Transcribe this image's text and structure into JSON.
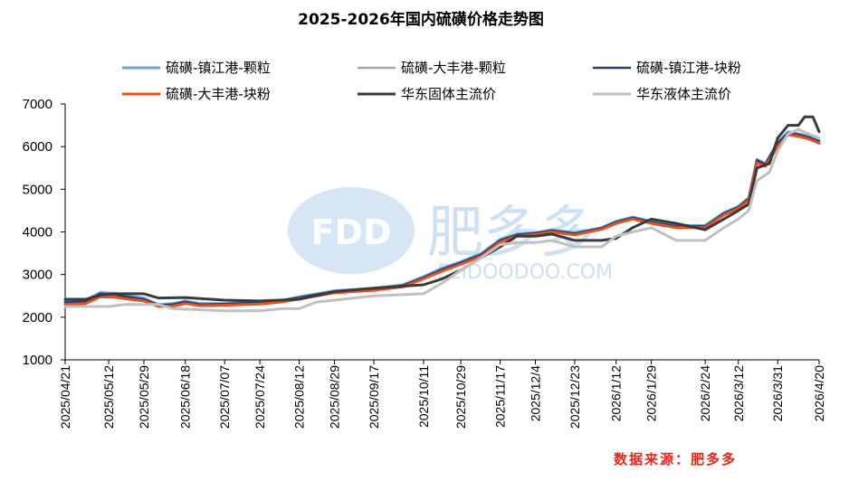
{
  "chart_data": {
    "type": "line",
    "title": "2025-2026年国内硫磺价格走势图",
    "source_label": "数据来源：肥多多",
    "watermark": {
      "logo_text": "FDD",
      "name": "肥多多",
      "site": "FEIDOODOO.COM"
    },
    "ylim": [
      1000,
      7000
    ],
    "yticks": [
      "1000",
      "2000",
      "3000",
      "4000",
      "5000",
      "6000",
      "7000"
    ],
    "x_start": "2025/04/21",
    "x_end": "2026/04/20",
    "xticks": [
      "2025/04/21",
      "2025/05/12",
      "2025/05/29",
      "2025/06/18",
      "2025/07/07",
      "2025/07/24",
      "2025/08/12",
      "2025/08/29",
      "2025/09/17",
      "2025/10/11",
      "2025/10/29",
      "2025/11/17",
      "2025/12/4",
      "2025/12/23",
      "2026/1/12",
      "2026/1/29",
      "2026/2/24",
      "2026/3/12",
      "2026/3/31",
      "2026/4/20"
    ],
    "legend_position": "top",
    "series": [
      {
        "name": "硫磺-镇江港-颗粒",
        "color": "#6fa2d6",
        "width": 3,
        "points": [
          [
            "2025/04/21",
            2380
          ],
          [
            "2025/05/01",
            2400
          ],
          [
            "2025/05/08",
            2580
          ],
          [
            "2025/05/15",
            2560
          ],
          [
            "2025/05/22",
            2500
          ],
          [
            "2025/05/29",
            2450
          ],
          [
            "2025/06/05",
            2300
          ],
          [
            "2025/06/12",
            2320
          ],
          [
            "2025/06/18",
            2380
          ],
          [
            "2025/06/25",
            2320
          ],
          [
            "2025/07/07",
            2320
          ],
          [
            "2025/07/24",
            2360
          ],
          [
            "2025/08/04",
            2400
          ],
          [
            "2025/08/12",
            2480
          ],
          [
            "2025/08/29",
            2620
          ],
          [
            "2025/09/17",
            2680
          ],
          [
            "2025/10/01",
            2760
          ],
          [
            "2025/10/11",
            2950
          ],
          [
            "2025/10/20",
            3150
          ],
          [
            "2025/10/29",
            3300
          ],
          [
            "2025/11/08",
            3500
          ],
          [
            "2025/11/17",
            3820
          ],
          [
            "2025/11/25",
            3950
          ],
          [
            "2025/12/04",
            3980
          ],
          [
            "2025/12/12",
            4050
          ],
          [
            "2025/12/23",
            3980
          ],
          [
            "2026/01/05",
            4100
          ],
          [
            "2026/01/12",
            4250
          ],
          [
            "2026/01/20",
            4350
          ],
          [
            "2026/01/29",
            4250
          ],
          [
            "2026/02/10",
            4150
          ],
          [
            "2026/02/24",
            4150
          ],
          [
            "2026/03/05",
            4450
          ],
          [
            "2026/03/12",
            4600
          ],
          [
            "2026/03/17",
            4800
          ],
          [
            "2026/03/21",
            5700
          ],
          [
            "2026/03/25",
            5600
          ],
          [
            "2026/03/31",
            6100
          ],
          [
            "2026/04/05",
            6350
          ],
          [
            "2026/04/10",
            6300
          ],
          [
            "2026/04/15",
            6250
          ],
          [
            "2026/04/20",
            6150
          ]
        ]
      },
      {
        "name": "硫磺-大丰港-颗粒",
        "color": "#a6a6a6",
        "width": 2.5,
        "points": [
          [
            "2025/04/21",
            2330
          ],
          [
            "2025/05/01",
            2350
          ],
          [
            "2025/05/08",
            2520
          ],
          [
            "2025/05/15",
            2500
          ],
          [
            "2025/05/22",
            2450
          ],
          [
            "2025/05/29",
            2400
          ],
          [
            "2025/06/05",
            2270
          ],
          [
            "2025/06/12",
            2280
          ],
          [
            "2025/06/18",
            2340
          ],
          [
            "2025/06/25",
            2290
          ],
          [
            "2025/07/07",
            2300
          ],
          [
            "2025/07/24",
            2330
          ],
          [
            "2025/08/04",
            2380
          ],
          [
            "2025/08/12",
            2450
          ],
          [
            "2025/08/29",
            2590
          ],
          [
            "2025/09/17",
            2650
          ],
          [
            "2025/10/01",
            2730
          ],
          [
            "2025/10/11",
            2920
          ],
          [
            "2025/10/20",
            3100
          ],
          [
            "2025/10/29",
            3260
          ],
          [
            "2025/11/08",
            3450
          ],
          [
            "2025/11/17",
            3780
          ],
          [
            "2025/11/25",
            3920
          ],
          [
            "2025/12/04",
            3960
          ],
          [
            "2025/12/12",
            4020
          ],
          [
            "2025/12/23",
            3950
          ],
          [
            "2026/01/05",
            4080
          ],
          [
            "2026/01/12",
            4220
          ],
          [
            "2026/01/20",
            4320
          ],
          [
            "2026/01/29",
            4220
          ],
          [
            "2026/02/10",
            4120
          ],
          [
            "2026/02/24",
            4120
          ],
          [
            "2026/03/05",
            4420
          ],
          [
            "2026/03/12",
            4570
          ],
          [
            "2026/03/17",
            4760
          ],
          [
            "2026/03/21",
            5650
          ],
          [
            "2026/03/25",
            5560
          ],
          [
            "2026/03/31",
            6050
          ],
          [
            "2026/04/05",
            6300
          ],
          [
            "2026/04/10",
            6260
          ],
          [
            "2026/04/15",
            6200
          ],
          [
            "2026/04/20",
            6100
          ]
        ]
      },
      {
        "name": "硫磺-镇江港-块粉",
        "color": "#1f3f6e",
        "width": 2.5,
        "points": [
          [
            "2025/04/21",
            2350
          ],
          [
            "2025/05/01",
            2370
          ],
          [
            "2025/05/08",
            2550
          ],
          [
            "2025/05/15",
            2530
          ],
          [
            "2025/05/22",
            2470
          ],
          [
            "2025/05/29",
            2420
          ],
          [
            "2025/06/05",
            2280
          ],
          [
            "2025/06/12",
            2300
          ],
          [
            "2025/06/18",
            2360
          ],
          [
            "2025/06/25",
            2300
          ],
          [
            "2025/07/07",
            2310
          ],
          [
            "2025/07/24",
            2340
          ],
          [
            "2025/08/04",
            2390
          ],
          [
            "2025/08/12",
            2460
          ],
          [
            "2025/08/29",
            2600
          ],
          [
            "2025/09/17",
            2660
          ],
          [
            "2025/10/01",
            2740
          ],
          [
            "2025/10/11",
            2930
          ],
          [
            "2025/10/20",
            3120
          ],
          [
            "2025/10/29",
            3280
          ],
          [
            "2025/11/08",
            3470
          ],
          [
            "2025/11/17",
            3800
          ],
          [
            "2025/11/25",
            3930
          ],
          [
            "2025/12/04",
            3970
          ],
          [
            "2025/12/12",
            4030
          ],
          [
            "2025/12/23",
            3960
          ],
          [
            "2026/01/05",
            4090
          ],
          [
            "2026/01/12",
            4230
          ],
          [
            "2026/01/20",
            4330
          ],
          [
            "2026/01/29",
            4230
          ],
          [
            "2026/02/10",
            4130
          ],
          [
            "2026/02/24",
            4130
          ],
          [
            "2026/03/05",
            4430
          ],
          [
            "2026/03/12",
            4580
          ],
          [
            "2026/03/17",
            4780
          ],
          [
            "2026/03/21",
            5680
          ],
          [
            "2026/03/25",
            5580
          ],
          [
            "2026/03/31",
            6080
          ],
          [
            "2026/04/05",
            6320
          ],
          [
            "2026/04/10",
            6280
          ],
          [
            "2026/04/15",
            6220
          ],
          [
            "2026/04/20",
            6120
          ]
        ]
      },
      {
        "name": "硫磺-大丰港-块粉",
        "color": "#e8501e",
        "width": 3,
        "points": [
          [
            "2025/04/21",
            2300
          ],
          [
            "2025/05/01",
            2320
          ],
          [
            "2025/05/08",
            2480
          ],
          [
            "2025/05/15",
            2470
          ],
          [
            "2025/05/22",
            2420
          ],
          [
            "2025/05/29",
            2380
          ],
          [
            "2025/06/05",
            2250
          ],
          [
            "2025/06/12",
            2260
          ],
          [
            "2025/06/18",
            2320
          ],
          [
            "2025/06/25",
            2270
          ],
          [
            "2025/07/07",
            2280
          ],
          [
            "2025/07/24",
            2310
          ],
          [
            "2025/08/04",
            2360
          ],
          [
            "2025/08/12",
            2430
          ],
          [
            "2025/08/29",
            2570
          ],
          [
            "2025/09/17",
            2630
          ],
          [
            "2025/10/01",
            2710
          ],
          [
            "2025/10/11",
            2900
          ],
          [
            "2025/10/20",
            3080
          ],
          [
            "2025/10/29",
            3240
          ],
          [
            "2025/11/08",
            3430
          ],
          [
            "2025/11/17",
            3760
          ],
          [
            "2025/11/25",
            3900
          ],
          [
            "2025/12/04",
            3940
          ],
          [
            "2025/12/12",
            4000
          ],
          [
            "2025/12/23",
            3930
          ],
          [
            "2026/01/05",
            4060
          ],
          [
            "2026/01/12",
            4200
          ],
          [
            "2026/01/20",
            4300
          ],
          [
            "2026/01/29",
            4200
          ],
          [
            "2026/02/10",
            4100
          ],
          [
            "2026/02/24",
            4100
          ],
          [
            "2026/03/05",
            4400
          ],
          [
            "2026/03/12",
            4550
          ],
          [
            "2026/03/17",
            4740
          ],
          [
            "2026/03/21",
            5620
          ],
          [
            "2026/03/25",
            5540
          ],
          [
            "2026/03/31",
            6000
          ],
          [
            "2026/04/05",
            6280
          ],
          [
            "2026/04/10",
            6240
          ],
          [
            "2026/04/15",
            6180
          ],
          [
            "2026/04/20",
            6080
          ]
        ]
      },
      {
        "name": "华东固体主流价",
        "color": "#3a3a3a",
        "width": 3,
        "points": [
          [
            "2025/04/21",
            2420
          ],
          [
            "2025/05/01",
            2420
          ],
          [
            "2025/05/08",
            2520
          ],
          [
            "2025/05/15",
            2550
          ],
          [
            "2025/05/29",
            2550
          ],
          [
            "2025/06/05",
            2450
          ],
          [
            "2025/06/18",
            2460
          ],
          [
            "2025/07/07",
            2400
          ],
          [
            "2025/07/24",
            2380
          ],
          [
            "2025/08/12",
            2420
          ],
          [
            "2025/08/29",
            2600
          ],
          [
            "2025/09/17",
            2680
          ],
          [
            "2025/10/11",
            2760
          ],
          [
            "2025/10/20",
            2900
          ],
          [
            "2025/10/29",
            3100
          ],
          [
            "2025/11/08",
            3400
          ],
          [
            "2025/11/17",
            3650
          ],
          [
            "2025/11/25",
            3900
          ],
          [
            "2025/12/04",
            3900
          ],
          [
            "2025/12/12",
            3950
          ],
          [
            "2025/12/23",
            3800
          ],
          [
            "2026/01/05",
            3800
          ],
          [
            "2026/01/12",
            3850
          ],
          [
            "2026/01/20",
            4100
          ],
          [
            "2026/01/29",
            4300
          ],
          [
            "2026/02/10",
            4200
          ],
          [
            "2026/02/24",
            4050
          ],
          [
            "2026/03/05",
            4300
          ],
          [
            "2026/03/12",
            4500
          ],
          [
            "2026/03/17",
            4650
          ],
          [
            "2026/03/21",
            5500
          ],
          [
            "2026/03/27",
            5600
          ],
          [
            "2026/03/31",
            6200
          ],
          [
            "2026/04/05",
            6500
          ],
          [
            "2026/04/10",
            6500
          ],
          [
            "2026/04/13",
            6700
          ],
          [
            "2026/04/17",
            6700
          ],
          [
            "2026/04/20",
            6350
          ]
        ]
      },
      {
        "name": "华东液体主流价",
        "color": "#c0c0c0",
        "width": 3,
        "points": [
          [
            "2025/04/21",
            2250
          ],
          [
            "2025/05/12",
            2250
          ],
          [
            "2025/05/20",
            2300
          ],
          [
            "2025/06/05",
            2300
          ],
          [
            "2025/06/12",
            2200
          ],
          [
            "2025/07/07",
            2150
          ],
          [
            "2025/07/24",
            2150
          ],
          [
            "2025/08/04",
            2200
          ],
          [
            "2025/08/12",
            2200
          ],
          [
            "2025/08/20",
            2350
          ],
          [
            "2025/08/29",
            2400
          ],
          [
            "2025/09/17",
            2500
          ],
          [
            "2025/10/11",
            2550
          ],
          [
            "2025/10/20",
            2800
          ],
          [
            "2025/10/29",
            3100
          ],
          [
            "2025/11/08",
            3400
          ],
          [
            "2025/11/17",
            3700
          ],
          [
            "2025/11/25",
            3750
          ],
          [
            "2025/12/04",
            3750
          ],
          [
            "2025/12/12",
            3800
          ],
          [
            "2025/12/23",
            3650
          ],
          [
            "2026/01/05",
            3650
          ],
          [
            "2026/01/12",
            3900
          ],
          [
            "2026/01/20",
            4000
          ],
          [
            "2026/01/29",
            4100
          ],
          [
            "2026/02/10",
            3800
          ],
          [
            "2026/02/24",
            3800
          ],
          [
            "2026/03/05",
            4100
          ],
          [
            "2026/03/12",
            4300
          ],
          [
            "2026/03/17",
            4500
          ],
          [
            "2026/03/21",
            5200
          ],
          [
            "2026/03/27",
            5400
          ],
          [
            "2026/03/31",
            5900
          ],
          [
            "2026/04/05",
            6300
          ],
          [
            "2026/04/10",
            6400
          ],
          [
            "2026/04/15",
            6300
          ],
          [
            "2026/04/20",
            6200
          ]
        ]
      }
    ]
  }
}
